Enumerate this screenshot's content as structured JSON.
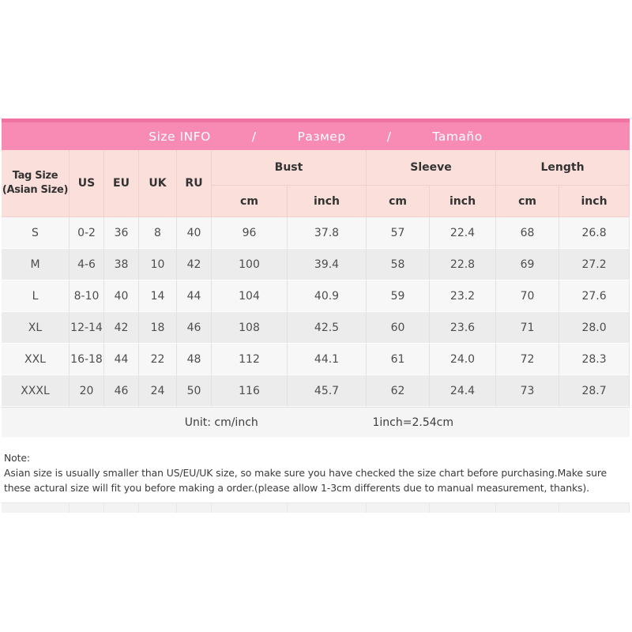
{
  "title_bar": {
    "items": [
      "Size INFO",
      "/",
      "Размер",
      "/",
      "Tamaño"
    ]
  },
  "table": {
    "corner_header": "Tag Size\n(Asian Size)",
    "size_system_headers": [
      "US",
      "EU",
      "UK",
      "RU"
    ],
    "measurement_groups": [
      {
        "label": "Bust",
        "subs": [
          "cm",
          "inch"
        ]
      },
      {
        "label": "Sleeve",
        "subs": [
          "cm",
          "inch"
        ]
      },
      {
        "label": "Length",
        "subs": [
          "cm",
          "inch"
        ]
      }
    ],
    "rows": [
      [
        "S",
        "0-2",
        "36",
        "8",
        "40",
        "96",
        "37.8",
        "57",
        "22.4",
        "68",
        "26.8"
      ],
      [
        "M",
        "4-6",
        "38",
        "10",
        "42",
        "100",
        "39.4",
        "58",
        "22.8",
        "69",
        "27.2"
      ],
      [
        "L",
        "8-10",
        "40",
        "14",
        "44",
        "104",
        "40.9",
        "59",
        "23.2",
        "70",
        "27.6"
      ],
      [
        "XL",
        "12-14",
        "42",
        "18",
        "46",
        "108",
        "42.5",
        "60",
        "23.6",
        "71",
        "28.0"
      ],
      [
        "XXL",
        "16-18",
        "44",
        "22",
        "48",
        "112",
        "44.1",
        "61",
        "24.0",
        "72",
        "28.3"
      ],
      [
        "XXXL",
        "20",
        "46",
        "24",
        "50",
        "116",
        "45.7",
        "62",
        "24.4",
        "73",
        "28.7"
      ]
    ],
    "footer": {
      "unit_label": "Unit: cm/inch",
      "conversion": "1inch=2.54cm"
    }
  },
  "note": {
    "label": "Note:",
    "body": "Asian size is usually smaller than US/EU/UK size, so make sure you have checked the size chart before purchasing.Make sure these actural size will fit you before making a order.(please allow 1-3cm differents due to manual measurement, thanks)."
  },
  "colors": {
    "header_pink": "#f78bb4",
    "header_pink_dark": "#f173a3",
    "subheader_pink": "#fbdfdb",
    "row_light": "#f7f7f7",
    "row_dark": "#ececec",
    "footer_gray": "#f5f5f5"
  }
}
